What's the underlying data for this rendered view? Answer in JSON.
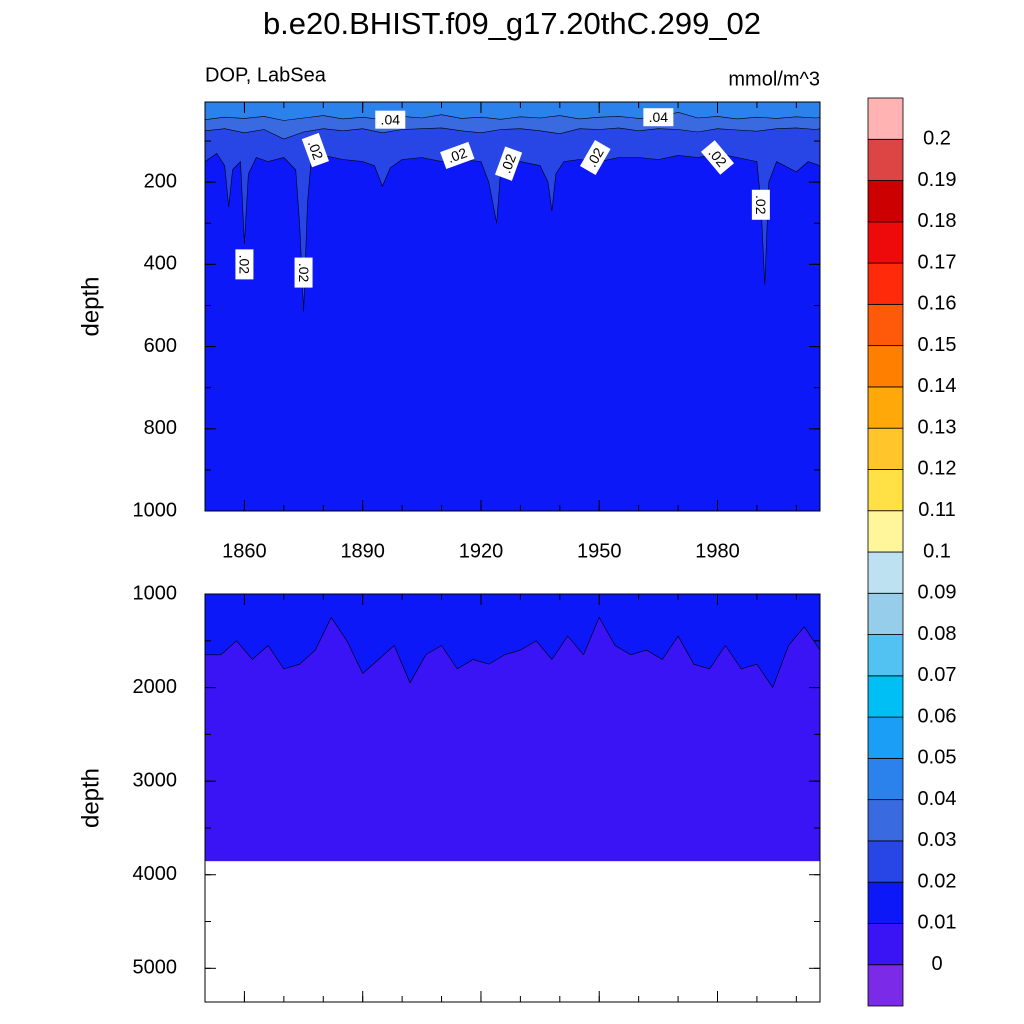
{
  "title": "b.e20.BHIST.f09_g17.20thC.299_02",
  "chart_data": [
    {
      "type": "contour",
      "left_string": "DOP, LabSea",
      "right_string": "mmol/m^3",
      "y_label": "depth",
      "xlim": [
        1850,
        2006
      ],
      "xticks": [
        1860,
        1890,
        1920,
        1950,
        1980
      ],
      "ylim": [
        5,
        1000
      ],
      "yticks": [
        200,
        400,
        600,
        800,
        1000
      ],
      "y_reversed": true,
      "base_level": 0.01,
      "contours": [
        {
          "level": 0.02,
          "x": [
            1850,
            1853,
            1855,
            1856,
            1857,
            1859,
            1860,
            1861,
            1863,
            1866,
            1870,
            1873,
            1874,
            1875,
            1876,
            1877,
            1880,
            1885,
            1890,
            1893,
            1895,
            1897,
            1900,
            1905,
            1910,
            1915,
            1920,
            1922,
            1924,
            1925,
            1927,
            1930,
            1935,
            1937,
            1938,
            1939,
            1941,
            1945,
            1950,
            1955,
            1960,
            1965,
            1970,
            1975,
            1980,
            1985,
            1990,
            1991,
            1992,
            1993,
            1995,
            2000,
            2003,
            2006
          ],
          "depth": [
            150,
            130,
            160,
            260,
            170,
            150,
            350,
            180,
            140,
            150,
            140,
            170,
            300,
            515,
            250,
            140,
            135,
            145,
            150,
            160,
            210,
            165,
            145,
            140,
            150,
            145,
            150,
            200,
            300,
            170,
            160,
            150,
            160,
            200,
            270,
            180,
            150,
            145,
            150,
            140,
            140,
            145,
            135,
            140,
            130,
            140,
            150,
            250,
            450,
            200,
            150,
            175,
            150,
            160
          ]
        },
        {
          "level": 0.03,
          "x": [
            1850,
            1855,
            1860,
            1865,
            1870,
            1875,
            1880,
            1885,
            1890,
            1895,
            1900,
            1905,
            1910,
            1915,
            1920,
            1925,
            1930,
            1935,
            1940,
            1945,
            1950,
            1955,
            1960,
            1965,
            1970,
            1975,
            1980,
            1985,
            1990,
            1995,
            2000,
            2005,
            2006
          ],
          "depth": [
            75,
            70,
            80,
            72,
            95,
            78,
            70,
            75,
            70,
            80,
            72,
            70,
            68,
            75,
            80,
            72,
            70,
            75,
            82,
            70,
            72,
            68,
            75,
            70,
            72,
            78,
            70,
            73,
            76,
            70,
            68,
            72,
            70
          ]
        },
        {
          "level": 0.04,
          "x": [
            1850,
            1855,
            1860,
            1865,
            1870,
            1875,
            1880,
            1885,
            1890,
            1895,
            1900,
            1905,
            1910,
            1915,
            1920,
            1925,
            1930,
            1935,
            1940,
            1945,
            1950,
            1955,
            1960,
            1965,
            1970,
            1975,
            1980,
            1985,
            1990,
            1995,
            2000,
            2005,
            2006
          ],
          "depth": [
            48,
            42,
            45,
            40,
            50,
            44,
            38,
            46,
            42,
            48,
            40,
            44,
            36,
            45,
            42,
            47,
            41,
            44,
            38,
            46,
            42,
            40,
            45,
            43,
            30,
            44,
            40,
            46,
            42,
            45,
            41,
            44,
            43
          ]
        }
      ],
      "contour_labels": [
        {
          "value": 0.04,
          "label": ".04"
        },
        {
          "value": 0.04,
          "label": ".04"
        },
        {
          "value": 0.02,
          "label": ".02"
        },
        {
          "value": 0.02,
          "label": ".02"
        },
        {
          "value": 0.02,
          "label": ".02"
        },
        {
          "value": 0.02,
          "label": ".02"
        },
        {
          "value": 0.02,
          "label": ".02"
        },
        {
          "value": 0.02,
          "label": ".02"
        },
        {
          "value": 0.02,
          "label": ".02"
        },
        {
          "value": 0.02,
          "label": ".02"
        }
      ]
    },
    {
      "type": "contour",
      "y_label": "depth",
      "xlim": [
        1850,
        2006
      ],
      "xticks": [
        1860,
        1890,
        1920,
        1950,
        1980
      ],
      "xticks_labeled": false,
      "ylim": [
        1000,
        5360
      ],
      "yticks": [
        1000,
        2000,
        3000,
        4000,
        5000
      ],
      "y_reversed": true,
      "base_level": 0,
      "missing_below": 3855,
      "contours": [
        {
          "level": 0.01,
          "x": [
            1850,
            1854,
            1858,
            1862,
            1866,
            1870,
            1874,
            1878,
            1882,
            1886,
            1890,
            1894,
            1898,
            1902,
            1906,
            1910,
            1914,
            1918,
            1922,
            1926,
            1930,
            1934,
            1938,
            1942,
            1946,
            1950,
            1954,
            1958,
            1962,
            1966,
            1970,
            1974,
            1978,
            1982,
            1986,
            1990,
            1994,
            1998,
            2002,
            2006
          ],
          "depth": [
            1650,
            1650,
            1500,
            1700,
            1550,
            1800,
            1750,
            1600,
            1250,
            1500,
            1850,
            1700,
            1550,
            1950,
            1650,
            1550,
            1800,
            1700,
            1750,
            1650,
            1600,
            1500,
            1700,
            1450,
            1650,
            1250,
            1550,
            1650,
            1600,
            1700,
            1450,
            1750,
            1800,
            1550,
            1800,
            1750,
            2000,
            1550,
            1350,
            1600
          ]
        }
      ],
      "contour_labels": []
    }
  ],
  "colorbar": {
    "levels": [
      0,
      0.01,
      0.02,
      0.03,
      0.04,
      0.05,
      0.06,
      0.07,
      0.08,
      0.09,
      0.1,
      0.11,
      0.12,
      0.13,
      0.14,
      0.15,
      0.16,
      0.17,
      0.18,
      0.19,
      0.2
    ],
    "colors": [
      "#7b2ae8",
      "#3a14f5",
      "#0c18f7",
      "#2845e6",
      "#3a6ae0",
      "#2c82ec",
      "#1a9ef6",
      "#00bff5",
      "#52c2f2",
      "#95cdeb",
      "#bde1f0",
      "#fff59a",
      "#ffe045",
      "#ffc52a",
      "#ffa80a",
      "#ff8000",
      "#ff5a0a",
      "#ff2a0a",
      "#ee0a0a",
      "#cc0000",
      "#dd4545",
      "#ffb3b3"
    ]
  }
}
